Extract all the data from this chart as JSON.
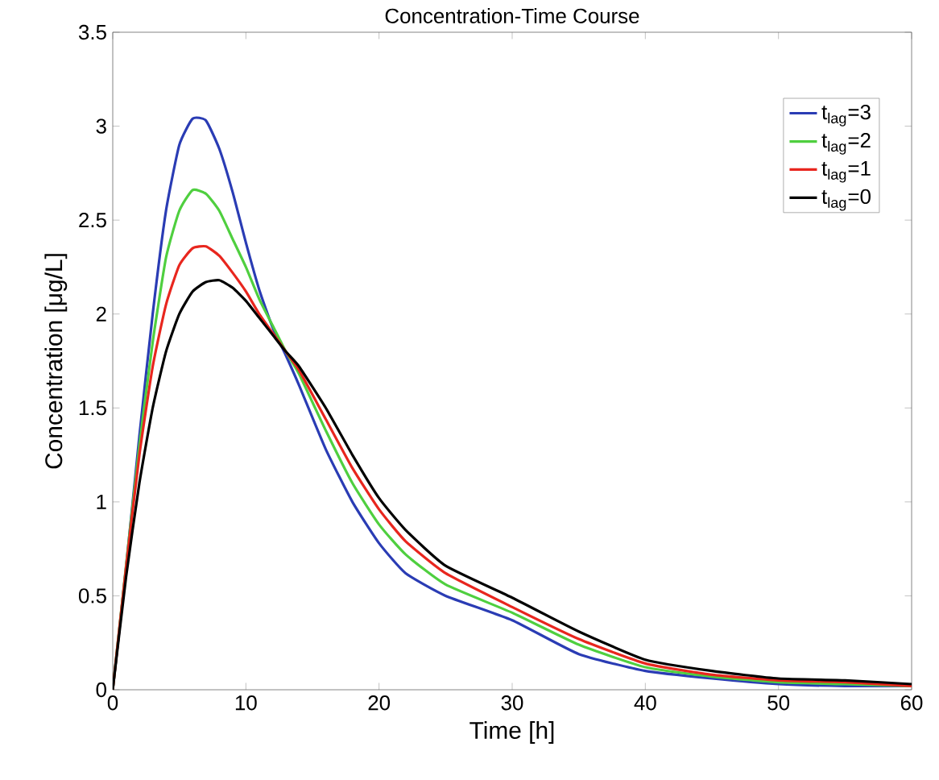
{
  "chart_data": {
    "type": "line",
    "title": "Concentration-Time Course",
    "xlabel": "Time [h]",
    "ylabel": "Concentration [μg/L]",
    "x": [
      0,
      1,
      2,
      3,
      4,
      5,
      6,
      7,
      8,
      9,
      10,
      11,
      12,
      13,
      14,
      16,
      18,
      20,
      22,
      25,
      30,
      35,
      40,
      45,
      50,
      55,
      60
    ],
    "series": [
      {
        "name": "t$_{lag}$=3",
        "color": "#2a3cb4",
        "values": [
          0,
          0.65,
          1.35,
          2.0,
          2.55,
          2.9,
          3.04,
          3.03,
          2.88,
          2.65,
          2.38,
          2.13,
          1.93,
          1.78,
          1.62,
          1.28,
          1.0,
          0.78,
          0.62,
          0.5,
          0.37,
          0.19,
          0.1,
          0.06,
          0.03,
          0.02,
          0.02
        ]
      },
      {
        "name": "t$_{lag}$=2",
        "color": "#4fcf3f",
        "values": [
          0,
          0.66,
          1.3,
          1.85,
          2.3,
          2.55,
          2.66,
          2.64,
          2.55,
          2.4,
          2.25,
          2.08,
          1.94,
          1.8,
          1.68,
          1.38,
          1.1,
          0.88,
          0.72,
          0.56,
          0.41,
          0.24,
          0.12,
          0.07,
          0.04,
          0.03,
          0.02
        ]
      },
      {
        "name": "t$_{lag}$=1",
        "color": "#e8261e",
        "values": [
          0,
          0.65,
          1.25,
          1.72,
          2.05,
          2.26,
          2.35,
          2.36,
          2.31,
          2.22,
          2.12,
          2.0,
          1.9,
          1.8,
          1.7,
          1.44,
          1.18,
          0.96,
          0.79,
          0.62,
          0.44,
          0.27,
          0.14,
          0.08,
          0.05,
          0.04,
          0.02
        ]
      },
      {
        "name": "t$_{lag}$=0",
        "color": "#000000",
        "values": [
          0,
          0.6,
          1.1,
          1.5,
          1.8,
          2.0,
          2.12,
          2.17,
          2.18,
          2.14,
          2.07,
          1.98,
          1.89,
          1.8,
          1.72,
          1.5,
          1.25,
          1.02,
          0.85,
          0.66,
          0.49,
          0.31,
          0.16,
          0.1,
          0.06,
          0.05,
          0.03
        ]
      }
    ],
    "xlim": [
      0,
      60
    ],
    "ylim": [
      0,
      3.5
    ],
    "xticks": [
      0,
      10,
      20,
      30,
      40,
      50,
      60
    ],
    "yticks": [
      0,
      0.5,
      1,
      1.5,
      2,
      2.5,
      3,
      3.5
    ],
    "legend": "top right",
    "grid": false,
    "marker": "none",
    "line_style": "solid"
  }
}
